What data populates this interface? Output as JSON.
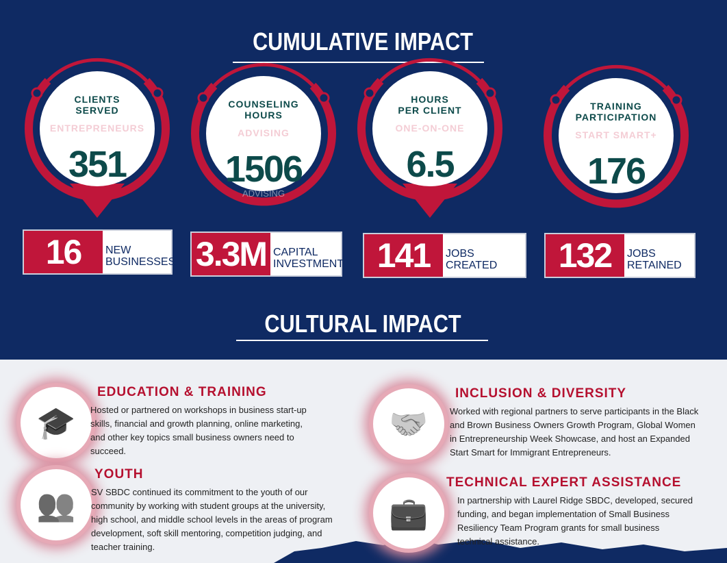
{
  "header": {
    "title": "CUMULATIVE IMPACT"
  },
  "stats": [
    {
      "label": "CLIENTS SERVED",
      "sublabel": "ENTREPRENEURS",
      "value": "351"
    },
    {
      "label": "COUNSELING HOURS",
      "sublabel": "ADVISING",
      "value": "1506",
      "watermark": "ADVISING"
    },
    {
      "label": "HOURS PER CLIENT",
      "sublabel": "ONE-ON-ONE",
      "value": "6.5"
    },
    {
      "label": "TRAINING PARTICIPATION",
      "sublabel": "START SMART+",
      "value": "176"
    }
  ],
  "boxes": [
    {
      "value": "16",
      "label": "NEW BUSINESSES"
    },
    {
      "value": "3.3M",
      "label": "CAPITAL INVESTMENT"
    },
    {
      "value": "141",
      "label": "JOBS CREATED"
    },
    {
      "value": "132",
      "label": "JOBS RETAINED"
    }
  ],
  "section": {
    "title": "CULTURAL IMPACT"
  },
  "items": [
    {
      "title": "EDUCATION & TRAINING",
      "text": "Hosted or partnered on workshops in business start-up skills, financial and growth planning, online marketing, and other key topics small business owners need to succeed."
    },
    {
      "title": "INCLUSION & DIVERSITY",
      "text": "Worked with regional partners to serve participants in the Black and Brown Business Owners Growth Program, Global Women in Entrepreneurship Week Showcase, and host an Expanded Start Smart for Immigrant Entrepreneurs."
    },
    {
      "title": "YOUTH",
      "text": "SV SBDC continued its commitment to the youth of our community by working with student groups at the university, high school, and middle school levels in the areas of program development, soft skill mentoring, competition judging, and teacher training."
    },
    {
      "title": "TECHNICAL EXPERT ASSISTANCE",
      "text": "In partnership with Laurel Ridge SBDC, developed, secured funding, and began implementation of Small Business Resiliency Team Program grants for small business technical assistance."
    }
  ]
}
